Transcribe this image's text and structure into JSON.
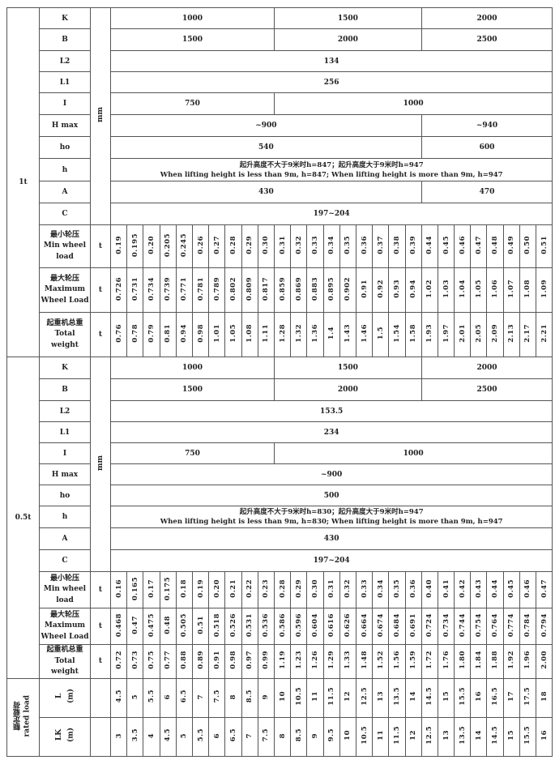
{
  "sections": [
    {
      "load": "1t",
      "mm_unit": "mm",
      "mm_rows": [
        {
          "param": "K",
          "spans": [
            [
              "1000",
              10
            ],
            [
              "1500",
              9
            ],
            [
              "2000",
              8
            ]
          ]
        },
        {
          "param": "B",
          "spans": [
            [
              "1500",
              10
            ],
            [
              "2000",
              9
            ],
            [
              "2500",
              8
            ]
          ]
        },
        {
          "param": "L2",
          "spans": [
            [
              "134",
              27
            ]
          ]
        },
        {
          "param": "L1",
          "spans": [
            [
              "256",
              27
            ]
          ]
        },
        {
          "param": "I",
          "spans": [
            [
              "750",
              10
            ],
            [
              "1000",
              17
            ]
          ]
        },
        {
          "param": "H max",
          "spans": [
            [
              "~900",
              19
            ],
            [
              "~940",
              8
            ]
          ]
        },
        {
          "param": "ho",
          "spans": [
            [
              "540",
              19
            ],
            [
              "600",
              8
            ]
          ]
        },
        {
          "param": "h",
          "spans": [
            [
              "起升高度不大于9米时h=847；起升高度大于9米时h=947\nWhen lifting height is less than 9m, h=847; When lifting height is more than 9m, h=947",
              27
            ]
          ]
        },
        {
          "param": "A",
          "spans": [
            [
              "430",
              19
            ],
            [
              "470",
              8
            ]
          ]
        },
        {
          "param": "C",
          "spans": [
            [
              "197~204",
              27
            ]
          ]
        }
      ],
      "t_rows": [
        {
          "label_cn": "最小轮压",
          "label_en": "Min wheel load",
          "unit": "t",
          "values": [
            "0.19",
            "0.195",
            "0.20",
            "0.205",
            "0.245",
            "0.26",
            "0.27",
            "0.28",
            "0.29",
            "0.30",
            "0.31",
            "0.32",
            "0.33",
            "0.34",
            "0.35",
            "0.36",
            "0.37",
            "0.38",
            "0.39",
            "0.44",
            "0.45",
            "0.46",
            "0.47",
            "0.48",
            "0.49",
            "0.50",
            "0.51"
          ]
        },
        {
          "label_cn": "最大轮压",
          "label_en": "Maximum Wheel Load",
          "unit": "t",
          "values": [
            "0.726",
            "0.731",
            "0.734",
            "0.739",
            "0.771",
            "0.781",
            "0.789",
            "0.802",
            "0.809",
            "0.817",
            "0.859",
            "0.869",
            "0.883",
            "0.895",
            "0.902",
            "0.91",
            "0.92",
            "0.93",
            "0.94",
            "1.02",
            "1.03",
            "1.04",
            "1.05",
            "1.06",
            "1.07",
            "1.08",
            "1.09"
          ]
        },
        {
          "label_cn": "起重机总重",
          "label_en": "Total weight",
          "unit": "t",
          "values": [
            "0.76",
            "0.78",
            "0.79",
            "0.81",
            "0.94",
            "0.98",
            "1.01",
            "1.05",
            "1.08",
            "1.11",
            "1.28",
            "1.32",
            "1.36",
            "1.4",
            "1.43",
            "1.46",
            "1.5",
            "1.54",
            "1.58",
            "1.93",
            "1.97",
            "2.01",
            "2.05",
            "2.09",
            "2.13",
            "2.17",
            "2.21"
          ]
        }
      ]
    },
    {
      "load": "0.5t",
      "mm_unit": "mm",
      "mm_rows": [
        {
          "param": "K",
          "spans": [
            [
              "1000",
              10
            ],
            [
              "1500",
              9
            ],
            [
              "2000",
              8
            ]
          ]
        },
        {
          "param": "B",
          "spans": [
            [
              "1500",
              10
            ],
            [
              "2000",
              9
            ],
            [
              "2500",
              8
            ]
          ]
        },
        {
          "param": "L2",
          "spans": [
            [
              "153.5",
              27
            ]
          ]
        },
        {
          "param": "L1",
          "spans": [
            [
              "234",
              27
            ]
          ]
        },
        {
          "param": "I",
          "spans": [
            [
              "750",
              10
            ],
            [
              "1000",
              17
            ]
          ]
        },
        {
          "param": "H max",
          "spans": [
            [
              "~900",
              27
            ]
          ]
        },
        {
          "param": "ho",
          "spans": [
            [
              "500",
              27
            ]
          ]
        },
        {
          "param": "h",
          "spans": [
            [
              "起升高度不大于9米时h=830；起升高度大于9米时h=947\nWhen lifting height is less than 9m, h=830; When lifting height is more than 9m, h=947",
              27
            ]
          ]
        },
        {
          "param": "A",
          "spans": [
            [
              "430",
              27
            ]
          ]
        },
        {
          "param": "C",
          "spans": [
            [
              "197~204",
              27
            ]
          ]
        }
      ],
      "t_rows": [
        {
          "label_cn": "最小轮压",
          "label_en": "Min wheel load",
          "unit": "t",
          "values": [
            "0.16",
            "0.165",
            "0.17",
            "0.175",
            "0.18",
            "0.19",
            "0.20",
            "0.21",
            "0.22",
            "0.23",
            "0.28",
            "0.29",
            "0.30",
            "0.31",
            "0.32",
            "0.33",
            "0.34",
            "0.35",
            "0.36",
            "0.40",
            "0.41",
            "0.42",
            "0.43",
            "0.44",
            "0.45",
            "0.46",
            "0.47"
          ]
        },
        {
          "label_cn": "最大轮压",
          "label_en": "Maximum Wheel Load",
          "unit": "t",
          "values": [
            "0.468",
            "0.47",
            "0.475",
            "0.48",
            "0.505",
            "0.51",
            "0.518",
            "0.526",
            "0.531",
            "0.536",
            "0.586",
            "0.596",
            "0.604",
            "0.616",
            "0.626",
            "0.664",
            "0.674",
            "0.684",
            "0.691",
            "0.724",
            "0.734",
            "0.744",
            "0.754",
            "0.764",
            "0.774",
            "0.784",
            "0.794"
          ]
        },
        {
          "label_cn": "起重机总重",
          "label_en": "Total weight",
          "unit": "t",
          "values": [
            "0.72",
            "0.73",
            "0.75",
            "0.77",
            "0.88",
            "0.89",
            "0.91",
            "0.98",
            "0.97",
            "0.99",
            "1.19",
            "1.23",
            "1.26",
            "1.29",
            "1.33",
            "1.48",
            "1.52",
            "1.56",
            "1.59",
            "1.72",
            "1.76",
            "1.80",
            "1.84",
            "1.88",
            "1.92",
            "1.96",
            "2.00"
          ]
        }
      ]
    }
  ],
  "rated_load": {
    "label_cn": "额定载荷",
    "label_en": "rated load",
    "rows": [
      {
        "param": "L",
        "unit": "(m)",
        "values": [
          "4.5",
          "5",
          "5.5",
          "6",
          "6.5",
          "7",
          "7.5",
          "8",
          "8.5",
          "9",
          "10",
          "10.5",
          "11",
          "11.5",
          "12",
          "12.5",
          "13",
          "13.5",
          "14",
          "14.5",
          "15",
          "15.5",
          "16",
          "16.5",
          "17",
          "17.5",
          "18"
        ]
      },
      {
        "param": "LK",
        "unit": "(m)",
        "values": [
          "3",
          "3.5",
          "4",
          "4.5",
          "5",
          "5.5",
          "6",
          "6.5",
          "7",
          "7.5",
          "8",
          "8.5",
          "9",
          "9.5",
          "10",
          "10.5",
          "11",
          "11.5",
          "12",
          "12.5",
          "13",
          "13.5",
          "14",
          "14.5",
          "15",
          "15.5",
          "16"
        ]
      }
    ]
  }
}
